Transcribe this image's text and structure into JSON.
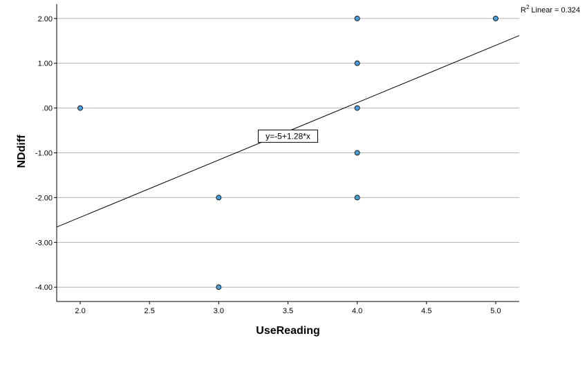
{
  "chart_data": {
    "type": "scatter",
    "xlabel": "UseReading",
    "ylabel": "NDdiff",
    "xlim": [
      1.83,
      5.17
    ],
    "ylim": [
      -4.32,
      2.32
    ],
    "x_ticks": [
      "2.0",
      "2.5",
      "3.0",
      "3.5",
      "4.0",
      "4.5",
      "5.0"
    ],
    "y_ticks": [
      "2.00",
      "1.00",
      ".00",
      "-1.00",
      "-2.00",
      "-3.00",
      "-4.00"
    ],
    "grid": "horizontal",
    "points": [
      {
        "x": 2.0,
        "y": 0.0
      },
      {
        "x": 3.0,
        "y": -2.0
      },
      {
        "x": 3.0,
        "y": -4.0
      },
      {
        "x": 4.0,
        "y": 2.0
      },
      {
        "x": 4.0,
        "y": 1.0
      },
      {
        "x": 4.0,
        "y": 0.0
      },
      {
        "x": 4.0,
        "y": -1.0
      },
      {
        "x": 4.0,
        "y": -2.0
      },
      {
        "x": 5.0,
        "y": 2.0
      }
    ],
    "fit_line": {
      "intercept": -5,
      "slope": 1.28
    },
    "fit_equation": "y=-5+1.28*x",
    "r2_label": "Linear = 0.324",
    "r2_prefix": "R",
    "r2_superscript": "2",
    "colors": {
      "point_fill": "#4a9fd8",
      "point_stroke": "#1a1a1a",
      "grid": "#b3b3b3",
      "line": "#000000"
    }
  }
}
